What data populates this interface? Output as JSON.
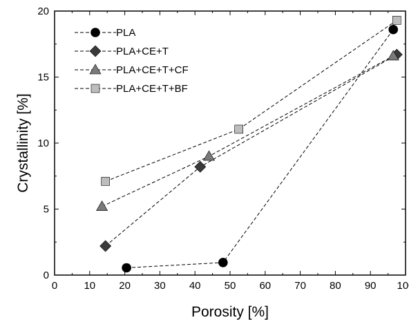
{
  "chart_data": {
    "type": "scatter",
    "title": "",
    "xlabel": "Porosity [%]",
    "ylabel": "Crystallinity [%]",
    "xlim": [
      0,
      100
    ],
    "ylim": [
      0,
      20
    ],
    "x_ticks": [
      0,
      10,
      20,
      30,
      40,
      50,
      60,
      70,
      80,
      90,
      100
    ],
    "y_ticks": [
      0,
      5,
      10,
      15,
      20
    ],
    "grid": false,
    "legend_position": "top-left",
    "line_style": "dashed",
    "series": [
      {
        "name": "PLA",
        "marker": "circle",
        "color": "#000000",
        "points": [
          [
            20.5,
            0.55
          ],
          [
            48,
            0.95
          ],
          [
            96.5,
            18.6
          ]
        ]
      },
      {
        "name": "PLA+CE+T",
        "marker": "diamond",
        "color": "#3a3a3a",
        "points": [
          [
            14.5,
            2.2
          ],
          [
            41.5,
            8.2
          ],
          [
            97.5,
            16.7
          ]
        ]
      },
      {
        "name": "PLA+CE+T+CF",
        "marker": "triangle",
        "color": "#7a7a7a",
        "points": [
          [
            13.5,
            5.2
          ],
          [
            44,
            9.0
          ],
          [
            96.5,
            16.6
          ]
        ]
      },
      {
        "name": "PLA+CE+T+BF",
        "marker": "square",
        "color": "#bdbdbd",
        "points": [
          [
            14.5,
            7.1
          ],
          [
            52.5,
            11.05
          ],
          [
            97.5,
            19.3
          ]
        ]
      }
    ]
  }
}
